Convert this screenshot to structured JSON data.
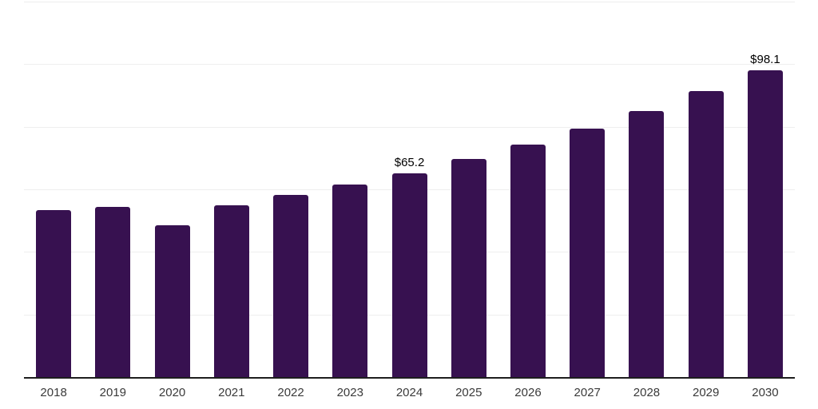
{
  "chart_data": {
    "type": "bar",
    "title": "",
    "xlabel": "",
    "ylabel": "",
    "categories": [
      "2018",
      "2019",
      "2020",
      "2021",
      "2022",
      "2023",
      "2024",
      "2025",
      "2026",
      "2027",
      "2028",
      "2029",
      "2030"
    ],
    "values": [
      53.3,
      54.5,
      48.5,
      54.8,
      58.2,
      61.5,
      65.2,
      69.7,
      74.2,
      79.3,
      85.0,
      91.3,
      98.1
    ],
    "data_labels": [
      {
        "category": "2024",
        "text": "$65.2"
      },
      {
        "category": "2030",
        "text": "$98.1"
      }
    ],
    "ylim": [
      0,
      120
    ],
    "gridline_step": 20,
    "grid": "horizontal-only",
    "legend": "none",
    "y_axis_labels_visible": false,
    "colors": {
      "bar": "#371150",
      "grid": "#eeeeee",
      "axis": "#1e1e1e",
      "data_label": "#000000",
      "tick_label": "#3a3a3a",
      "background": "#ffffff"
    }
  }
}
